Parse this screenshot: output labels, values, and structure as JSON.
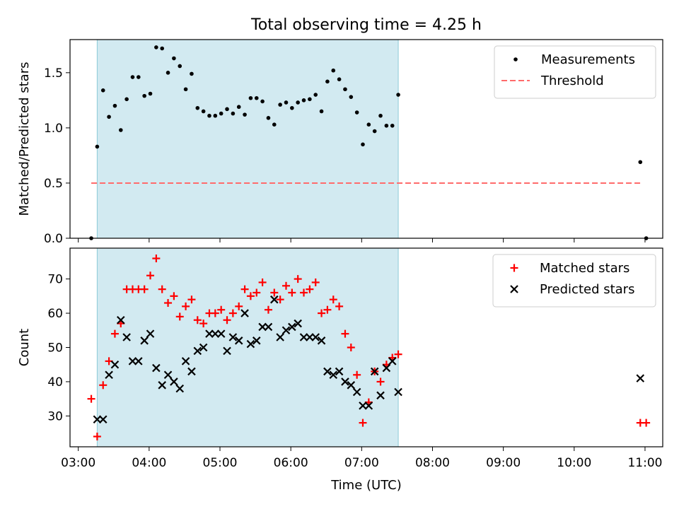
{
  "suptitle": "Total observing time = 4.25 h",
  "chart_data": [
    {
      "type": "scatter",
      "ylabel": "Matched/Predicted stars",
      "xlabel": "",
      "xlim": [
        "02:53",
        "11:15"
      ],
      "ylim": [
        0,
        1.8
      ],
      "yticks": [
        0.0,
        0.5,
        1.0,
        1.5
      ],
      "yticklabels": [
        "0.0",
        "0.5",
        "1.0",
        "1.5"
      ],
      "shaded_span": {
        "start": "03:16",
        "end": "07:31",
        "color": "#add8e6"
      },
      "threshold": {
        "name": "Threshold",
        "value": 0.5,
        "from": "03:11",
        "to": "10:56",
        "color": "#ff6b6b",
        "style": "dashed"
      },
      "legend": {
        "position": "top-right",
        "entries": [
          "Measurements",
          "Threshold"
        ]
      },
      "series": [
        {
          "name": "Measurements",
          "marker": "dot",
          "color": "#000000",
          "x": [
            "03:11",
            "03:16",
            "03:21",
            "03:26",
            "03:31",
            "03:36",
            "03:41",
            "03:46",
            "03:51",
            "03:56",
            "04:01",
            "04:06",
            "04:11",
            "04:16",
            "04:21",
            "04:26",
            "04:31",
            "04:36",
            "04:41",
            "04:46",
            "04:51",
            "04:56",
            "05:01",
            "05:06",
            "05:11",
            "05:16",
            "05:21",
            "05:26",
            "05:31",
            "05:36",
            "05:41",
            "05:46",
            "05:51",
            "05:56",
            "06:01",
            "06:06",
            "06:11",
            "06:16",
            "06:21",
            "06:26",
            "06:31",
            "06:36",
            "06:41",
            "06:46",
            "06:51",
            "06:56",
            "07:01",
            "07:06",
            "07:11",
            "07:16",
            "07:21",
            "07:26",
            "07:31",
            "10:56",
            "11:01"
          ],
          "y": [
            0.0,
            0.83,
            1.34,
            1.1,
            1.2,
            0.98,
            1.26,
            1.46,
            1.46,
            1.29,
            1.31,
            1.73,
            1.72,
            1.5,
            1.63,
            1.56,
            1.35,
            1.49,
            1.18,
            1.15,
            1.11,
            1.11,
            1.13,
            1.17,
            1.13,
            1.19,
            1.12,
            1.27,
            1.27,
            1.24,
            1.09,
            1.03,
            1.21,
            1.23,
            1.18,
            1.23,
            1.25,
            1.26,
            1.3,
            1.15,
            1.42,
            1.52,
            1.44,
            1.35,
            1.28,
            1.14,
            0.85,
            1.03,
            0.97,
            1.11,
            1.02,
            1.02,
            1.3,
            0.69,
            0.0
          ]
        }
      ]
    },
    {
      "type": "scatter",
      "ylabel": "Count",
      "xlabel": "Time (UTC)",
      "xlim": [
        "02:53",
        "11:15"
      ],
      "ylim": [
        21,
        79
      ],
      "yticks": [
        30,
        40,
        50,
        60,
        70
      ],
      "yticklabels": [
        "30",
        "40",
        "50",
        "60",
        "70"
      ],
      "xticks": [
        "03:00",
        "04:00",
        "05:00",
        "06:00",
        "07:00",
        "08:00",
        "09:00",
        "10:00",
        "11:00"
      ],
      "xticklabels": [
        "03:00",
        "04:00",
        "05:00",
        "06:00",
        "07:00",
        "08:00",
        "09:00",
        "10:00",
        "11:00"
      ],
      "shaded_span": {
        "start": "03:16",
        "end": "07:31",
        "color": "#add8e6"
      },
      "legend": {
        "position": "top-right",
        "entries": [
          "Matched stars",
          "Predicted stars"
        ]
      },
      "series": [
        {
          "name": "Matched stars",
          "marker": "plus",
          "color": "#ff0000",
          "x": [
            "03:11",
            "03:16",
            "03:21",
            "03:26",
            "03:31",
            "03:36",
            "03:41",
            "03:46",
            "03:51",
            "03:56",
            "04:01",
            "04:06",
            "04:11",
            "04:16",
            "04:21",
            "04:26",
            "04:31",
            "04:36",
            "04:41",
            "04:46",
            "04:51",
            "04:56",
            "05:01",
            "05:06",
            "05:11",
            "05:16",
            "05:21",
            "05:26",
            "05:31",
            "05:36",
            "05:41",
            "05:46",
            "05:51",
            "05:56",
            "06:01",
            "06:06",
            "06:11",
            "06:16",
            "06:21",
            "06:26",
            "06:31",
            "06:36",
            "06:41",
            "06:46",
            "06:51",
            "06:56",
            "07:01",
            "07:06",
            "07:11",
            "07:16",
            "07:21",
            "07:26",
            "07:31",
            "10:56",
            "11:01"
          ],
          "y": [
            35,
            24,
            39,
            46,
            54,
            57,
            67,
            67,
            67,
            67,
            71,
            76,
            67,
            63,
            65,
            59,
            62,
            64,
            58,
            57,
            60,
            60,
            61,
            58,
            60,
            62,
            67,
            65,
            66,
            69,
            61,
            66,
            64,
            68,
            66,
            70,
            66,
            67,
            69,
            60,
            61,
            64,
            62,
            54,
            50,
            42,
            28,
            34,
            43,
            40,
            45,
            47,
            48,
            28,
            28
          ]
        },
        {
          "name": "Predicted stars",
          "marker": "x",
          "color": "#000000",
          "x": [
            "03:16",
            "03:21",
            "03:26",
            "03:31",
            "03:36",
            "03:41",
            "03:46",
            "03:51",
            "03:56",
            "04:01",
            "04:06",
            "04:11",
            "04:16",
            "04:21",
            "04:26",
            "04:31",
            "04:36",
            "04:41",
            "04:46",
            "04:51",
            "04:56",
            "05:01",
            "05:06",
            "05:11",
            "05:16",
            "05:21",
            "05:26",
            "05:31",
            "05:36",
            "05:41",
            "05:46",
            "05:51",
            "05:56",
            "06:01",
            "06:06",
            "06:11",
            "06:16",
            "06:21",
            "06:26",
            "06:31",
            "06:36",
            "06:41",
            "06:46",
            "06:51",
            "06:56",
            "07:01",
            "07:06",
            "07:11",
            "07:16",
            "07:21",
            "07:26",
            "07:31",
            "10:56"
          ],
          "y": [
            29,
            29,
            42,
            45,
            58,
            53,
            46,
            46,
            52,
            54,
            44,
            39,
            42,
            40,
            38,
            46,
            43,
            49,
            50,
            54,
            54,
            54,
            49,
            53,
            52,
            60,
            51,
            52,
            56,
            56,
            64,
            53,
            55,
            56,
            57,
            53,
            53,
            53,
            52,
            43,
            42,
            43,
            40,
            39,
            37,
            33,
            33,
            43,
            36,
            44,
            46,
            37,
            41
          ]
        }
      ]
    }
  ]
}
